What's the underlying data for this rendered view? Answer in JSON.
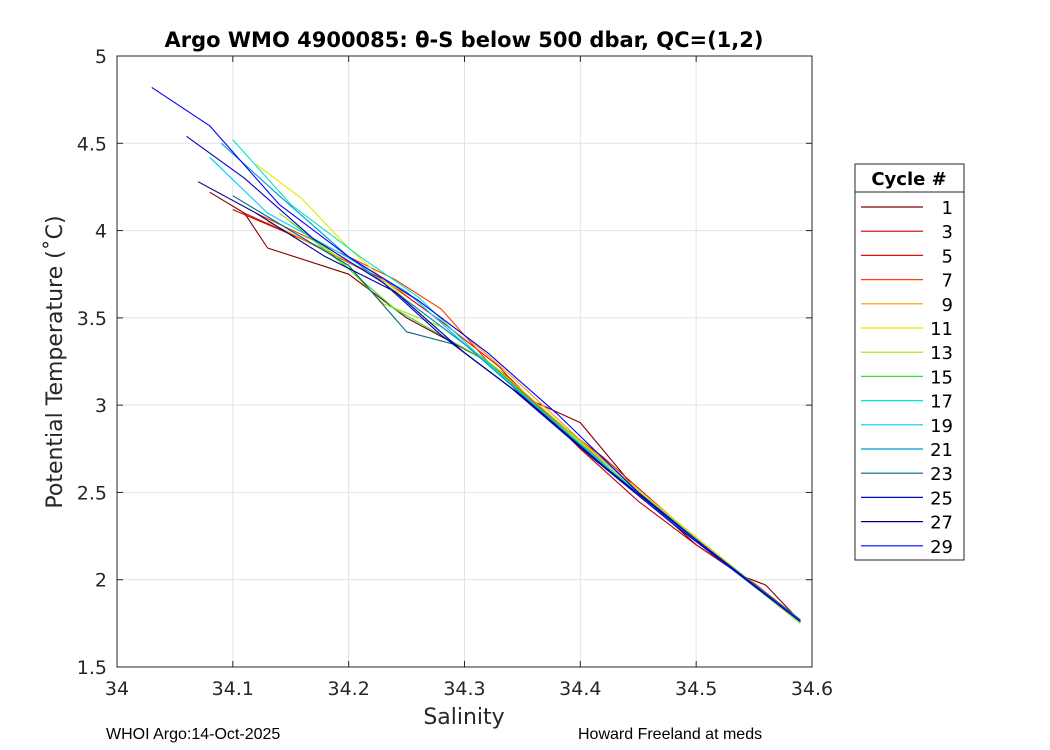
{
  "chart_data": {
    "type": "line",
    "title": "Argo WMO 4900085: θ-S below 500 dbar,  QC=(1,2)",
    "xlabel": "Salinity",
    "ylabel": "Potential Temperature (˚C)",
    "xlim": [
      34.0,
      34.6
    ],
    "ylim": [
      1.5,
      5.0
    ],
    "xticks": [
      "34",
      "34.1",
      "34.2",
      "34.3",
      "34.4",
      "34.5",
      "34.6"
    ],
    "yticks": [
      "1.5",
      "2",
      "2.5",
      "3",
      "3.5",
      "4",
      "4.5",
      "5"
    ],
    "grid": true,
    "legend": {
      "title": "Cycle #",
      "position": "outside-right",
      "entries": [
        {
          "label": "1",
          "color": "#800000"
        },
        {
          "label": "3",
          "color": "#c00000"
        },
        {
          "label": "5",
          "color": "#e01000"
        },
        {
          "label": "7",
          "color": "#ff4000"
        },
        {
          "label": "9",
          "color": "#ff9900"
        },
        {
          "label": "11",
          "color": "#e6e600"
        },
        {
          "label": "13",
          "color": "#99e600"
        },
        {
          "label": "15",
          "color": "#33dd33"
        },
        {
          "label": "17",
          "color": "#00e6cc"
        },
        {
          "label": "19",
          "color": "#00ccff"
        },
        {
          "label": "21",
          "color": "#0099cc"
        },
        {
          "label": "23",
          "color": "#006680"
        },
        {
          "label": "25",
          "color": "#0000cc"
        },
        {
          "label": "27",
          "color": "#00008b"
        },
        {
          "label": "29",
          "color": "#0000ff"
        }
      ]
    },
    "series": [
      {
        "name": "1",
        "x": [
          34.08,
          34.11,
          34.13,
          34.2,
          34.25,
          34.32,
          34.35,
          34.4,
          34.45,
          34.5,
          34.54,
          34.56,
          34.59
        ],
        "y": [
          4.22,
          4.1,
          3.9,
          3.75,
          3.5,
          3.25,
          3.05,
          2.9,
          2.5,
          2.2,
          2.02,
          1.97,
          1.76
        ]
      },
      {
        "name": "3",
        "x": [
          34.1,
          34.16,
          34.22,
          34.27,
          34.31,
          34.34,
          34.37,
          34.4,
          34.45,
          34.5,
          34.55,
          34.59
        ],
        "y": [
          4.12,
          3.95,
          3.75,
          3.5,
          3.3,
          3.15,
          2.95,
          2.75,
          2.45,
          2.2,
          1.98,
          1.77
        ]
      },
      {
        "name": "5",
        "x": [
          34.11,
          34.17,
          34.23,
          34.28,
          34.33,
          34.36,
          34.42,
          34.48,
          34.59
        ],
        "y": [
          4.1,
          3.92,
          3.72,
          3.48,
          3.22,
          3.0,
          2.7,
          2.35,
          1.76
        ]
      },
      {
        "name": "7",
        "x": [
          34.12,
          34.2,
          34.24,
          34.28,
          34.32,
          34.38,
          34.44,
          34.5,
          34.59
        ],
        "y": [
          4.1,
          3.85,
          3.72,
          3.55,
          3.25,
          2.9,
          2.55,
          2.22,
          1.76
        ]
      },
      {
        "name": "9",
        "x": [
          34.13,
          34.2,
          34.26,
          34.3,
          34.34,
          34.4,
          34.47,
          34.53,
          34.59
        ],
        "y": [
          4.05,
          3.82,
          3.6,
          3.4,
          3.17,
          2.8,
          2.4,
          2.08,
          1.77
        ]
      },
      {
        "name": "11",
        "x": [
          34.12,
          34.16,
          34.2,
          34.25,
          34.3,
          34.36,
          34.42,
          34.48,
          34.59
        ],
        "y": [
          4.38,
          4.18,
          3.9,
          3.6,
          3.35,
          3.0,
          2.68,
          2.35,
          1.76
        ]
      },
      {
        "name": "13",
        "x": [
          34.14,
          34.19,
          34.23,
          34.28,
          34.33,
          34.39,
          34.46,
          34.52,
          34.59
        ],
        "y": [
          4.1,
          3.85,
          3.58,
          3.45,
          3.2,
          2.85,
          2.45,
          2.12,
          1.75
        ]
      },
      {
        "name": "15",
        "x": [
          34.15,
          34.2,
          34.24,
          34.28,
          34.32,
          34.38,
          34.45,
          34.51,
          34.59
        ],
        "y": [
          4.05,
          3.78,
          3.55,
          3.4,
          3.25,
          2.88,
          2.5,
          2.18,
          1.76
        ]
      },
      {
        "name": "17",
        "x": [
          34.1,
          34.15,
          34.21,
          34.26,
          34.31,
          34.37,
          34.44,
          34.5,
          34.59
        ],
        "y": [
          4.52,
          4.15,
          3.85,
          3.62,
          3.3,
          2.95,
          2.55,
          2.22,
          1.76
        ]
      },
      {
        "name": "19",
        "x": [
          34.08,
          34.13,
          34.19,
          34.25,
          34.3,
          34.36,
          34.43,
          34.5,
          34.59
        ],
        "y": [
          4.42,
          4.1,
          3.88,
          3.65,
          3.35,
          3.0,
          2.6,
          2.22,
          1.76
        ]
      },
      {
        "name": "21",
        "x": [
          34.09,
          34.14,
          34.2,
          34.25,
          34.3,
          34.36,
          34.43,
          34.5,
          34.59
        ],
        "y": [
          4.5,
          4.2,
          3.85,
          3.6,
          3.35,
          3.0,
          2.6,
          2.22,
          1.77
        ]
      },
      {
        "name": "23",
        "x": [
          34.1,
          34.15,
          34.2,
          34.25,
          34.29,
          34.35,
          34.42,
          34.49,
          34.59
        ],
        "y": [
          4.2,
          4.0,
          3.8,
          3.42,
          3.35,
          3.05,
          2.65,
          2.28,
          1.77
        ]
      },
      {
        "name": "25",
        "x": [
          34.06,
          34.11,
          34.17,
          34.23,
          34.28,
          34.34,
          34.41,
          34.48,
          34.59
        ],
        "y": [
          4.54,
          4.3,
          3.95,
          3.7,
          3.4,
          3.1,
          2.7,
          2.32,
          1.76
        ]
      },
      {
        "name": "27",
        "x": [
          34.07,
          34.12,
          34.18,
          34.24,
          34.3,
          34.35,
          34.42,
          34.49,
          34.59
        ],
        "y": [
          4.28,
          4.1,
          3.85,
          3.65,
          3.3,
          3.05,
          2.65,
          2.28,
          1.76
        ]
      },
      {
        "name": "29",
        "x": [
          34.03,
          34.08,
          34.14,
          34.2,
          34.26,
          34.32,
          34.38,
          34.45,
          34.52,
          34.59
        ],
        "y": [
          4.82,
          4.6,
          4.15,
          3.85,
          3.6,
          3.3,
          2.95,
          2.5,
          2.12,
          1.76
        ]
      }
    ]
  },
  "footer": {
    "left": "WHOI Argo:14-Oct-2025",
    "right": "Howard Freeland at meds"
  }
}
